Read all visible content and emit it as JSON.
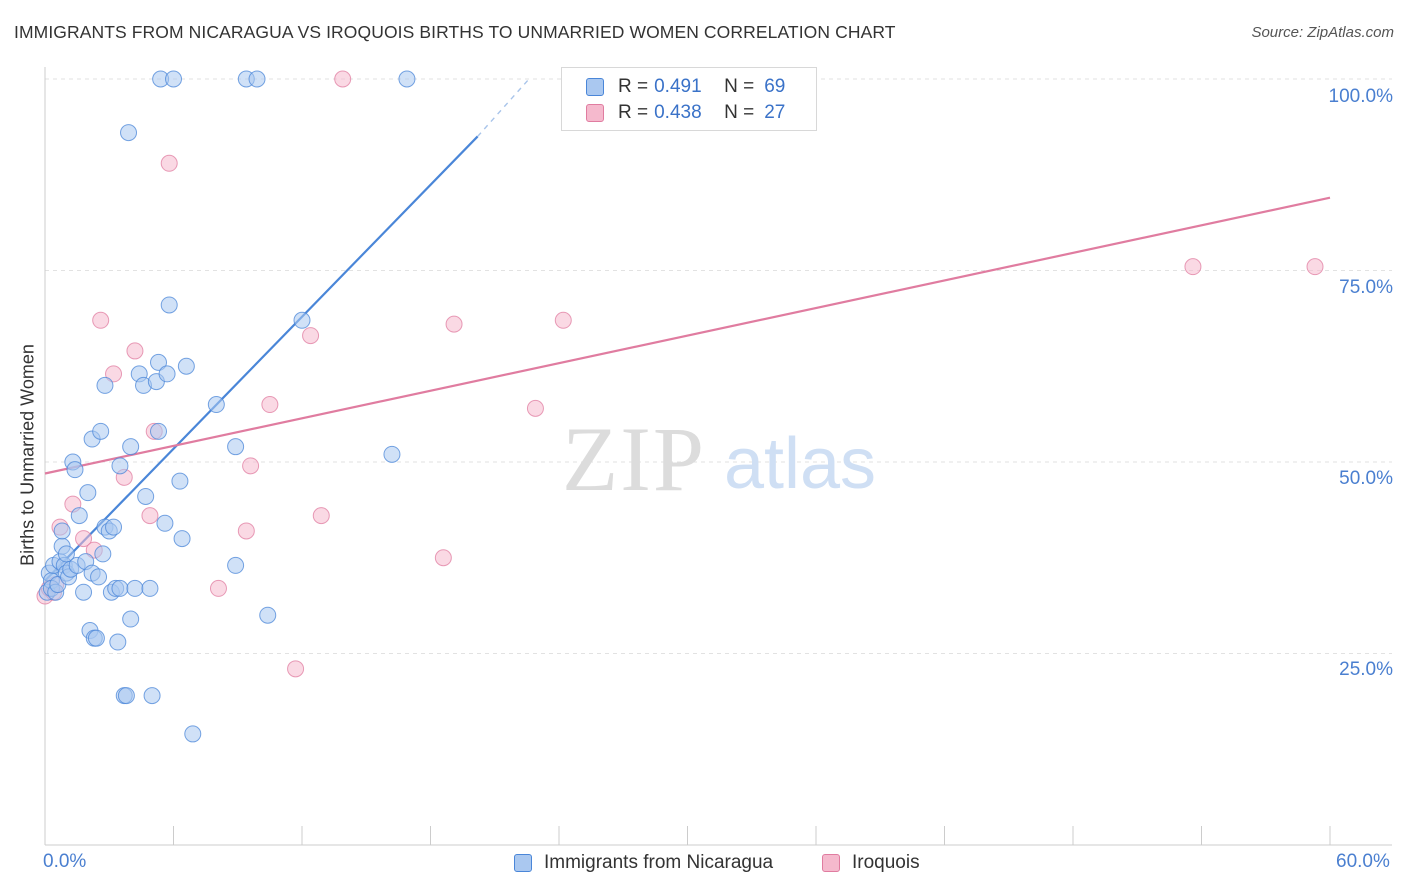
{
  "chart_data": {
    "type": "scatter",
    "title": "IMMIGRANTS FROM NICARAGUA VS IROQUOIS BIRTHS TO UNMARRIED WOMEN CORRELATION CHART",
    "source": "Source: ZipAtlas.com",
    "xlabel": "",
    "ylabel": "Births to Unmarried Women",
    "xlim": [
      0,
      60
    ],
    "ylim": [
      0,
      100
    ],
    "x_tick_labels": [
      "0.0%",
      "60.0%"
    ],
    "y_tick_labels": [
      "25.0%",
      "50.0%",
      "75.0%",
      "100.0%"
    ],
    "y_ticks": [
      25,
      50,
      75,
      100
    ],
    "grid": true,
    "watermark": {
      "zip": "ZIP",
      "atlas": "atlas"
    },
    "legend": [
      {
        "r_label": "R =",
        "r_value": "0.491",
        "n_label": "N =",
        "n_value": "69"
      },
      {
        "r_label": "R =",
        "r_value": "0.438",
        "n_label": "N =",
        "n_value": "27"
      }
    ],
    "series": [
      {
        "name": "Immigrants from Nicaragua",
        "color": "#4a86d8",
        "fill": "#aac8f0",
        "trend": {
          "x": [
            0,
            20.2
          ],
          "y": [
            34.5,
            92.5
          ]
        },
        "trend_ext": {
          "x": [
            20.2,
            22.6
          ],
          "y": [
            92.5,
            100
          ]
        },
        "points": [
          [
            0.1,
            33
          ],
          [
            0.2,
            35.5
          ],
          [
            0.3,
            34.5
          ],
          [
            0.3,
            33.5
          ],
          [
            0.4,
            36.5
          ],
          [
            0.5,
            33
          ],
          [
            0.6,
            34
          ],
          [
            0.7,
            37
          ],
          [
            0.8,
            39
          ],
          [
            0.8,
            41
          ],
          [
            0.9,
            36.5
          ],
          [
            1.0,
            38
          ],
          [
            1.0,
            35.5
          ],
          [
            1.1,
            35
          ],
          [
            1.2,
            36
          ],
          [
            1.3,
            50
          ],
          [
            1.4,
            49
          ],
          [
            1.5,
            36.5
          ],
          [
            1.6,
            43
          ],
          [
            1.8,
            33
          ],
          [
            1.9,
            37
          ],
          [
            2.0,
            46
          ],
          [
            2.1,
            28
          ],
          [
            2.2,
            35.5
          ],
          [
            2.2,
            53
          ],
          [
            2.3,
            27
          ],
          [
            2.4,
            27
          ],
          [
            2.5,
            35
          ],
          [
            2.6,
            54
          ],
          [
            2.7,
            38
          ],
          [
            2.8,
            41.5
          ],
          [
            2.8,
            60
          ],
          [
            3.0,
            41
          ],
          [
            3.1,
            33
          ],
          [
            3.2,
            41.5
          ],
          [
            3.3,
            33.5
          ],
          [
            3.4,
            26.5
          ],
          [
            3.5,
            33.5
          ],
          [
            3.5,
            49.5
          ],
          [
            3.7,
            19.5
          ],
          [
            3.8,
            19.5
          ],
          [
            3.9,
            93
          ],
          [
            4.0,
            52
          ],
          [
            4.0,
            29.5
          ],
          [
            4.2,
            33.5
          ],
          [
            4.4,
            61.5
          ],
          [
            4.6,
            60
          ],
          [
            4.7,
            45.5
          ],
          [
            4.9,
            33.5
          ],
          [
            5.0,
            19.5
          ],
          [
            5.2,
            60.5
          ],
          [
            5.3,
            54
          ],
          [
            5.3,
            63
          ],
          [
            5.4,
            100
          ],
          [
            5.6,
            42
          ],
          [
            5.7,
            61.5
          ],
          [
            5.8,
            70.5
          ],
          [
            6.0,
            100
          ],
          [
            6.3,
            47.5
          ],
          [
            6.4,
            40
          ],
          [
            6.6,
            62.5
          ],
          [
            6.9,
            14.5
          ],
          [
            8.0,
            57.5
          ],
          [
            8.9,
            36.5
          ],
          [
            8.9,
            52
          ],
          [
            9.4,
            100
          ],
          [
            9.9,
            100
          ],
          [
            10.4,
            30
          ],
          [
            12.0,
            68.5
          ],
          [
            16.2,
            51
          ],
          [
            16.9,
            100
          ]
        ]
      },
      {
        "name": "Iroquois",
        "color": "#e07ca0",
        "fill": "#f5b9cd",
        "trend": {
          "x": [
            0,
            60
          ],
          "y": [
            48.5,
            84.5
          ]
        },
        "points": [
          [
            0.0,
            32.5
          ],
          [
            0.2,
            33.5
          ],
          [
            0.4,
            33
          ],
          [
            0.5,
            34
          ],
          [
            0.7,
            41.5
          ],
          [
            1.3,
            44.5
          ],
          [
            1.8,
            40
          ],
          [
            2.3,
            38.5
          ],
          [
            2.6,
            68.5
          ],
          [
            3.2,
            61.5
          ],
          [
            3.7,
            48
          ],
          [
            4.2,
            64.5
          ],
          [
            4.9,
            43
          ],
          [
            5.1,
            54
          ],
          [
            5.8,
            89
          ],
          [
            8.1,
            33.5
          ],
          [
            9.4,
            41
          ],
          [
            9.6,
            49.5
          ],
          [
            10.5,
            57.5
          ],
          [
            11.7,
            23
          ],
          [
            12.4,
            66.5
          ],
          [
            12.9,
            43
          ],
          [
            13.9,
            100
          ],
          [
            18.6,
            37.5
          ],
          [
            19.1,
            68
          ],
          [
            22.9,
            57
          ],
          [
            24.2,
            68.5
          ],
          [
            53.6,
            75.5
          ],
          [
            59.3,
            75.5
          ]
        ]
      }
    ]
  }
}
